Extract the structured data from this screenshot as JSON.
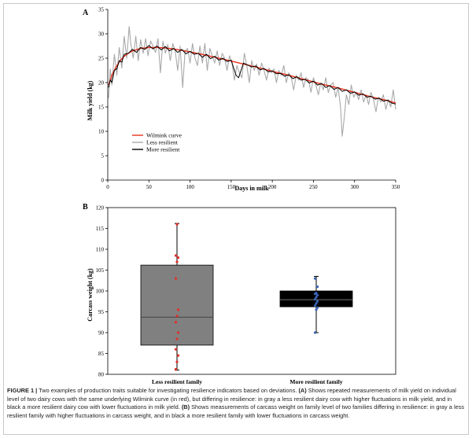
{
  "caption": {
    "label": "FIGURE 1 |",
    "s1": " Two examples of production traits suitable for investigating resilience indicators based on deviations. ",
    "a": "(A)",
    "s2": " Shows repeated measurements of milk yield on individual level of two dairy cows with the same underlying Wilmink curve (in red), but differing in resilience: in gray a less resilient dairy cow with higher fluctuations in milk yield, and in black a more resilient dairy cow with lower fluctuations in milk yield. ",
    "b": "(B)",
    "s3": " Shows measurements of carcass weight on family level of two families differing in resilience: in gray a less resilient family with higher fluctuations in carcass weight, and in black a more resilient family with lower fluctuations in carcass weight."
  },
  "chart_data": [
    {
      "panel": "A",
      "type": "line",
      "xlabel": "Days in milk",
      "ylabel": "Milk yield (kg)",
      "xlim": [
        0,
        350
      ],
      "ylim": [
        0,
        35
      ],
      "xticks": [
        0,
        50,
        100,
        150,
        200,
        250,
        300,
        350
      ],
      "yticks": [
        0,
        5,
        10,
        15,
        20,
        25,
        30,
        35
      ],
      "legend_position": "bottom-left",
      "series": [
        {
          "name": "Wilmink curve",
          "color": "#e8301c",
          "x": [
            1,
            5,
            10,
            15,
            20,
            25,
            30,
            40,
            50,
            60,
            70,
            80,
            90,
            100,
            120,
            140,
            160,
            180,
            200,
            220,
            240,
            260,
            280,
            300,
            320,
            340,
            350
          ],
          "y": [
            19.5,
            21.5,
            23.2,
            24.5,
            25.4,
            26.0,
            26.5,
            27.0,
            27.2,
            27.2,
            27.1,
            26.9,
            26.6,
            26.3,
            25.6,
            24.8,
            24.0,
            23.2,
            22.3,
            21.5,
            20.6,
            19.7,
            18.9,
            18.0,
            17.1,
            16.3,
            15.8
          ]
        },
        {
          "name": "Less resilient",
          "color": "#a9a9a9",
          "x": [
            1,
            3,
            5,
            8,
            11,
            14,
            17,
            20,
            23,
            26,
            28,
            31,
            34,
            37,
            40,
            43,
            46,
            49,
            52,
            55,
            58,
            61,
            64,
            67,
            70,
            73,
            76,
            79,
            82,
            85,
            88,
            91,
            94,
            97,
            100,
            103,
            106,
            109,
            112,
            115,
            118,
            121,
            124,
            127,
            130,
            133,
            136,
            139,
            142,
            145,
            148,
            151,
            154,
            157,
            160,
            163,
            166,
            169,
            172,
            175,
            178,
            181,
            184,
            187,
            190,
            193,
            196,
            199,
            202,
            205,
            208,
            211,
            214,
            217,
            220,
            223,
            226,
            229,
            232,
            235,
            238,
            241,
            244,
            247,
            250,
            253,
            256,
            259,
            262,
            265,
            268,
            271,
            274,
            277,
            280,
            283,
            285,
            287,
            290,
            293,
            296,
            299,
            302,
            305,
            308,
            311,
            314,
            317,
            320,
            323,
            326,
            329,
            332,
            335,
            338,
            341,
            344,
            347,
            350
          ],
          "y": [
            16.8,
            22.8,
            19.5,
            25.8,
            21.5,
            27.2,
            23.0,
            29.5,
            25.0,
            31.5,
            28.0,
            25.0,
            29.5,
            24.5,
            28.8,
            26.0,
            29.0,
            25.5,
            28.5,
            27.5,
            26.2,
            29.0,
            22.0,
            28.5,
            26.0,
            27.8,
            24.5,
            28.0,
            26.5,
            22.5,
            27.5,
            19.0,
            26.5,
            27.0,
            24.0,
            28.0,
            25.0,
            23.5,
            27.5,
            24.0,
            28.0,
            22.5,
            27.0,
            25.5,
            24.0,
            26.5,
            23.5,
            26.0,
            25.0,
            22.5,
            25.5,
            24.0,
            20.5,
            23.5,
            22.0,
            21.0,
            26.0,
            23.5,
            20.0,
            24.5,
            22.5,
            23.8,
            21.5,
            24.0,
            22.5,
            20.5,
            23.0,
            22.0,
            22.8,
            20.0,
            22.5,
            21.5,
            23.5,
            20.0,
            22.0,
            21.0,
            18.5,
            21.5,
            20.5,
            22.0,
            19.0,
            21.0,
            20.5,
            18.0,
            21.0,
            19.5,
            17.5,
            20.0,
            18.5,
            21.0,
            18.0,
            19.5,
            20.0,
            17.0,
            19.0,
            15.0,
            9.0,
            12.0,
            17.5,
            15.5,
            19.5,
            17.0,
            18.0,
            16.5,
            18.5,
            16.0,
            17.5,
            15.5,
            18.0,
            16.5,
            14.0,
            17.0,
            16.0,
            17.5,
            14.5,
            16.5,
            15.0,
            18.5,
            14.5
          ]
        },
        {
          "name": "More resilient",
          "color": "#000000",
          "x": [
            1,
            3,
            5,
            8,
            11,
            14,
            17,
            20,
            25,
            30,
            35,
            40,
            45,
            50,
            55,
            60,
            65,
            70,
            75,
            80,
            85,
            90,
            95,
            100,
            105,
            110,
            115,
            120,
            125,
            130,
            135,
            140,
            145,
            150,
            153,
            156,
            159,
            162,
            165,
            170,
            175,
            180,
            185,
            190,
            195,
            200,
            205,
            210,
            215,
            220,
            225,
            230,
            235,
            240,
            245,
            250,
            255,
            260,
            265,
            270,
            275,
            280,
            285,
            290,
            295,
            300,
            305,
            310,
            315,
            320,
            325,
            330,
            335,
            340,
            345,
            350
          ],
          "y": [
            19.0,
            20.5,
            20.0,
            22.5,
            22.8,
            24.5,
            24.2,
            25.8,
            26.0,
            26.8,
            26.2,
            27.2,
            26.8,
            27.6,
            26.9,
            27.5,
            26.7,
            27.4,
            26.5,
            27.0,
            26.2,
            26.8,
            25.9,
            26.4,
            25.8,
            26.0,
            25.2,
            25.8,
            24.9,
            25.4,
            24.6,
            25.0,
            24.3,
            24.6,
            23.0,
            21.5,
            21.0,
            22.5,
            24.0,
            23.6,
            23.2,
            23.4,
            22.6,
            22.9,
            22.2,
            22.4,
            21.8,
            21.9,
            21.3,
            21.6,
            20.8,
            21.2,
            20.5,
            20.7,
            19.9,
            20.3,
            19.5,
            19.8,
            19.0,
            19.4,
            18.6,
            19.0,
            18.2,
            18.5,
            17.8,
            18.1,
            17.4,
            17.7,
            17.0,
            17.2,
            16.6,
            16.8,
            16.2,
            16.4,
            15.8,
            15.6
          ]
        }
      ]
    },
    {
      "panel": "B",
      "type": "box",
      "ylabel": "Carcass weight (kg)",
      "ylim": [
        80,
        120
      ],
      "yticks": [
        80,
        85,
        90,
        95,
        100,
        105,
        110,
        115,
        120
      ],
      "categories": [
        "Less resilient family",
        "More resilient family"
      ],
      "boxes": [
        {
          "category": "Less resilient family",
          "fill": "#808080",
          "point_color": "#e0302a",
          "min": 81.0,
          "q1": 87.0,
          "median": 93.7,
          "q3": 106.2,
          "max": 116.2,
          "points": [
            81.2,
            83.0,
            84.5,
            86.0,
            88.5,
            90.0,
            92.5,
            94.0,
            95.5,
            103.0,
            107.0,
            108.0,
            108.5,
            116.0
          ]
        },
        {
          "category": "More resilient family",
          "fill": "#000000",
          "point_color": "#3a63b8",
          "min": 90.0,
          "q1": 96.2,
          "median": 97.9,
          "q3": 100.0,
          "max": 103.5,
          "points": [
            90.0,
            95.5,
            96.0,
            96.5,
            97.0,
            97.5,
            98.0,
            98.5,
            99.0,
            99.3,
            99.5,
            101.0,
            103.0
          ]
        }
      ]
    }
  ]
}
